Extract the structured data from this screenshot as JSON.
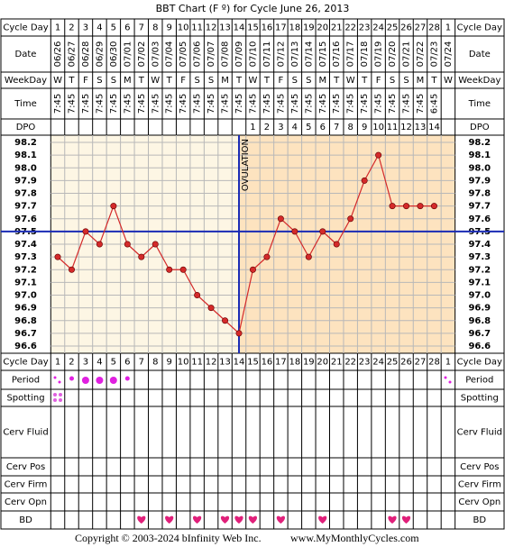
{
  "title": "BBT Chart (F º) for Cycle June 26, 2013",
  "row_labels": {
    "cycle_day": "Cycle Day",
    "date": "Date",
    "weekday": "WeekDay",
    "time": "Time",
    "dpo": "DPO",
    "period": "Period",
    "spotting": "Spotting",
    "cerv_fluid": "Cerv Fluid",
    "cerv_pos": "Cerv Pos",
    "cerv_firm": "Cerv Firm",
    "cerv_opn": "Cerv Opn",
    "bd": "BD"
  },
  "dates": [
    "06/26",
    "06/27",
    "06/28",
    "06/29",
    "06/30",
    "07/01",
    "07/02",
    "07/03",
    "07/04",
    "07/05",
    "07/06",
    "07/07",
    "07/08",
    "07/09",
    "07/10",
    "07/11",
    "07/12",
    "07/13",
    "07/14",
    "07/15",
    "07/16",
    "07/17",
    "07/18",
    "07/19",
    "07/20",
    "07/21",
    "07/22",
    "07/23",
    "07/24"
  ],
  "weekdays": [
    "W",
    "T",
    "F",
    "S",
    "S",
    "M",
    "T",
    "W",
    "T",
    "F",
    "S",
    "S",
    "M",
    "T",
    "W",
    "T",
    "F",
    "S",
    "S",
    "M",
    "T",
    "W",
    "T",
    "F",
    "S",
    "S",
    "M",
    "T",
    "W"
  ],
  "times": [
    "7:45",
    "7:45",
    "7:45",
    "7:45",
    "7:45",
    "7:45",
    "7:45",
    "7:45",
    "7:45",
    "7:45",
    "7:45",
    "7:45",
    "7:45",
    "7:45",
    "7:45",
    "7:45",
    "7:45",
    "7:45",
    "7:45",
    "7:45",
    "7:45",
    "7:45",
    "7:45",
    "7:45",
    "7:45",
    "7:45",
    "7:45",
    "6:45",
    null
  ],
  "dpo": [
    null,
    null,
    null,
    null,
    null,
    null,
    null,
    null,
    null,
    null,
    null,
    null,
    null,
    null,
    1,
    2,
    3,
    4,
    5,
    6,
    7,
    8,
    9,
    10,
    11,
    12,
    13,
    14,
    null
  ],
  "chart_data": {
    "type": "line",
    "categories": [
      1,
      2,
      3,
      4,
      5,
      6,
      7,
      8,
      9,
      10,
      11,
      12,
      13,
      14,
      15,
      16,
      17,
      18,
      19,
      20,
      21,
      22,
      23,
      24,
      25,
      26,
      27,
      28,
      1
    ],
    "values": [
      97.3,
      97.2,
      97.5,
      97.4,
      97.7,
      97.4,
      97.3,
      97.4,
      97.2,
      97.2,
      97.0,
      96.9,
      96.8,
      96.7,
      97.2,
      97.3,
      97.6,
      97.5,
      97.3,
      97.5,
      97.4,
      97.6,
      97.9,
      98.1,
      97.7,
      97.7,
      97.7,
      97.7,
      null
    ],
    "color": "#d42a2a",
    "ylim": [
      96.6,
      98.2
    ],
    "yticks": [
      96.6,
      96.7,
      96.8,
      96.9,
      {
        "value": 97,
        "label": "97.0"
      },
      97.1,
      97.2,
      97.3,
      97.4,
      97.5,
      97.6,
      97.7,
      97.8,
      97.9,
      {
        "value": 98,
        "label": "98.0"
      },
      98.1,
      98.2
    ],
    "grid": true,
    "coverline": 97.5,
    "ovulation_day": 14,
    "annotation": "OVULATION"
  },
  "footer": {
    "copyright": "Copyright © 2003-2024 bInfinity Web Inc.",
    "site": "www.MyMonthlyCycles.com"
  }
}
